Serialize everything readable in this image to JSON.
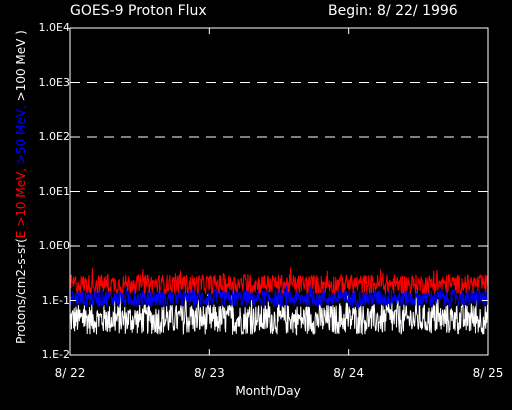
{
  "chart_data": {
    "type": "line",
    "title_left": "GOES-9 Proton Flux",
    "title_right": "Begin: 8/ 22/ 1996",
    "xlabel": "Month/Day",
    "ylabel_prefix": "Protons/cm2-s-sr(",
    "ylabel_series": [
      {
        "text": "E >10 MeV, ",
        "color": "#ff0000"
      },
      {
        "text": ">50 MeV, ",
        "color": "#0000ff"
      },
      {
        "text": ">100 MeV )",
        "color": "#ffffff"
      }
    ],
    "y_scale": "log",
    "ylim": [
      0.01,
      10000
    ],
    "xlim": [
      0,
      3
    ],
    "y_ticks": [
      {
        "value": 10000,
        "label": "1.0E4"
      },
      {
        "value": 1000,
        "label": "1.0E3"
      },
      {
        "value": 100,
        "label": "1.0E2"
      },
      {
        "value": 10,
        "label": "1.0E1"
      },
      {
        "value": 1,
        "label": "1.0E0"
      },
      {
        "value": 0.1,
        "label": "1.E-1"
      },
      {
        "value": 0.01,
        "label": "1.E-2"
      }
    ],
    "x_ticks": [
      {
        "value": 0,
        "label": "8/ 22"
      },
      {
        "value": 1,
        "label": "8/ 23"
      },
      {
        "value": 2,
        "label": "8/ 24"
      },
      {
        "value": 3,
        "label": "8/ 25"
      }
    ],
    "gridlines": [
      1000,
      100,
      10,
      1
    ],
    "series": [
      {
        "color": "#ffffff",
        "baseline": 0.045,
        "log_spread": 0.28
      },
      {
        "color": "#0000ff",
        "baseline": 0.11,
        "log_spread": 0.16
      },
      {
        "color": "#ff0000",
        "baseline": 0.2,
        "log_spread": 0.18
      }
    ]
  }
}
